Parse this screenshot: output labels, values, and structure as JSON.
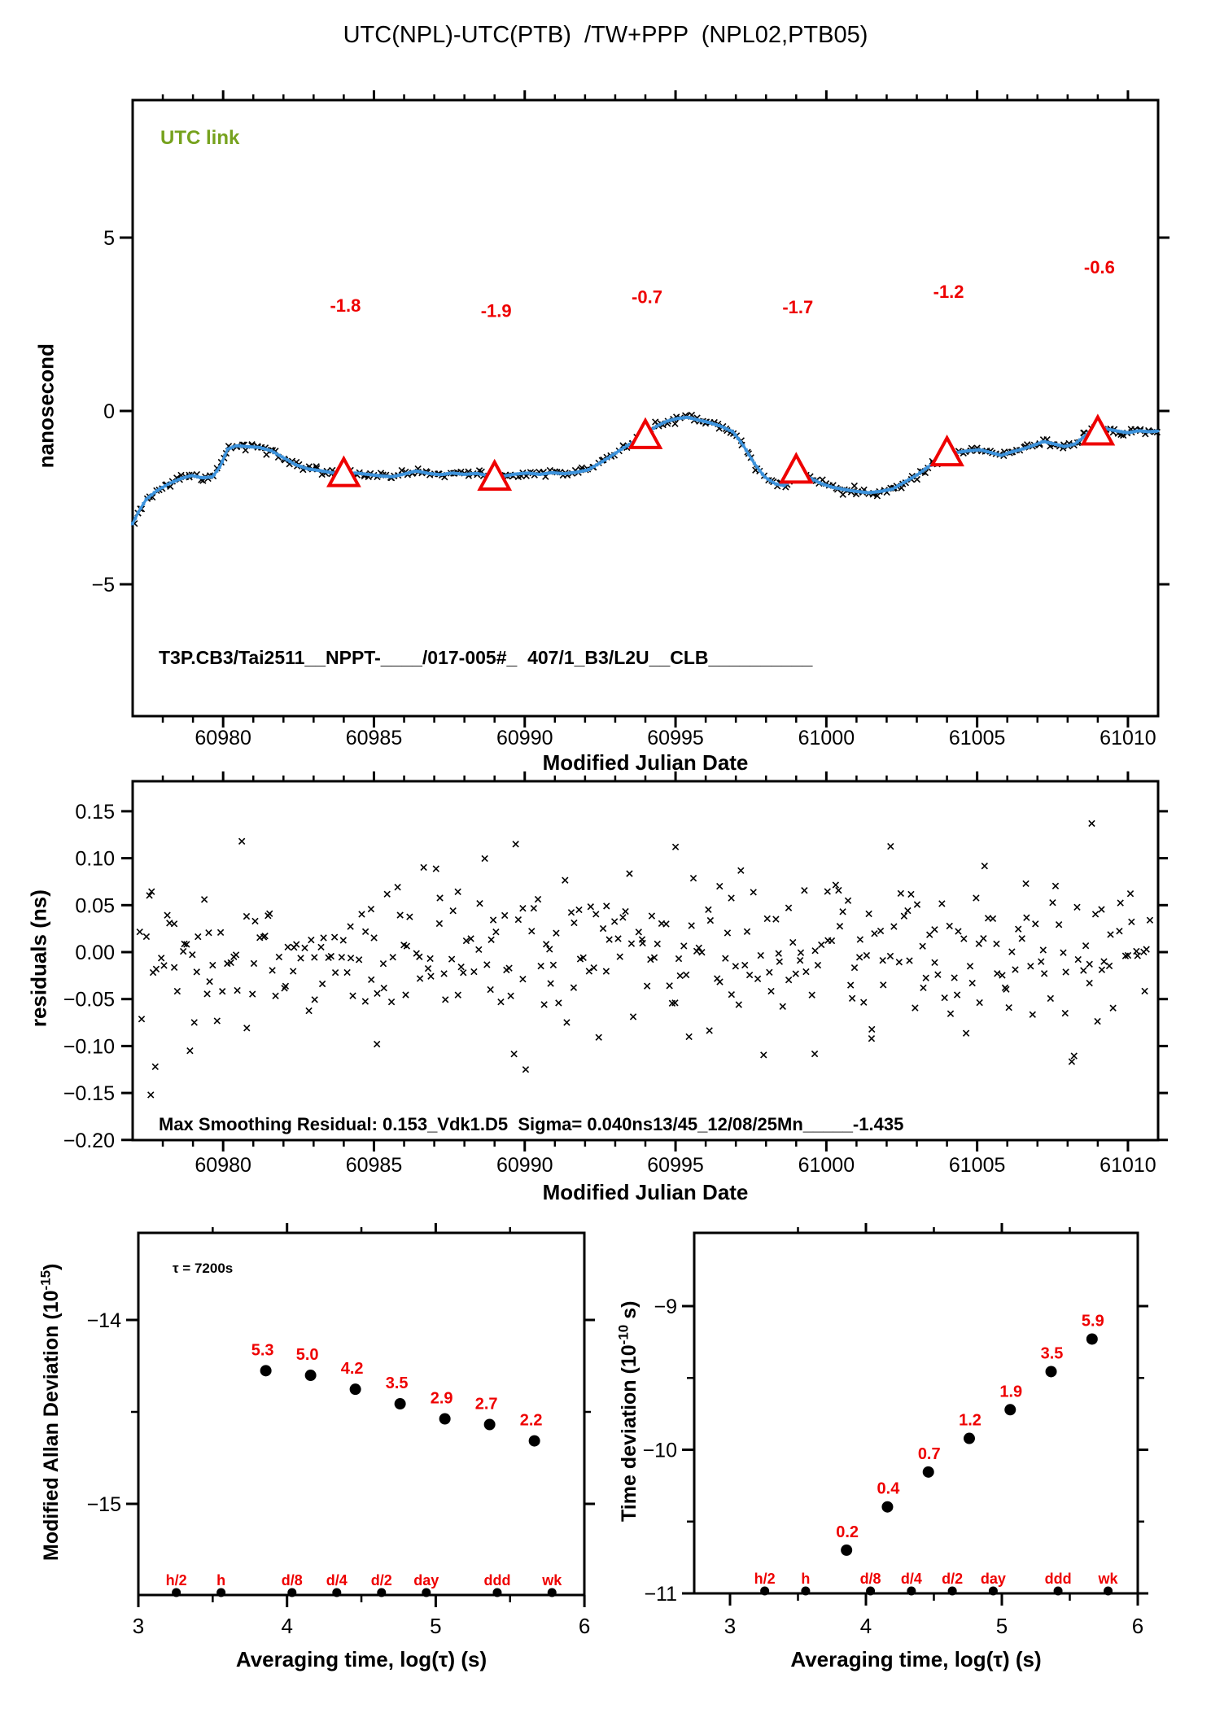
{
  "colors": {
    "red": "#ee0000",
    "blue": "#3d93dc",
    "green": "#76a21e",
    "ink": "#000000",
    "background": "#ffffff"
  },
  "chart_data": [
    {
      "id": "utc-link-time-series",
      "type": "line",
      "title": "UTC(NPL)-UTC(PTB)  /TW+PPP  (NPL02,PTB05)",
      "legend": "UTC link",
      "ylabel": "nanosecond",
      "xlabel": "Modified Julian Date",
      "annotation": "T3P.CB3/Tai2511__NPPT-____/017-005#_  407/1_B3/L2U__CLB__________",
      "xlim": [
        60977,
        61011
      ],
      "ylim": [
        -9,
        9
      ],
      "xticks_major": [
        60980,
        60985,
        60990,
        60995,
        61000,
        61005,
        61010
      ],
      "xtick_minor_step": 1,
      "yticks": [
        {
          "v": 5,
          "label": "5"
        },
        {
          "v": 0,
          "label": "0"
        },
        {
          "v": -5,
          "label": "−5"
        }
      ],
      "calibration_points": [
        {
          "mjd": 60984,
          "ns": -1.8,
          "label": "-1.8",
          "label_ns": 3.05
        },
        {
          "mjd": 60989,
          "ns": -1.9,
          "label": "-1.9",
          "label_ns": 2.9
        },
        {
          "mjd": 60994,
          "ns": -0.7,
          "label": "-0.7",
          "label_ns": 3.3
        },
        {
          "mjd": 60999,
          "ns": -1.7,
          "label": "-1.7",
          "label_ns": 3.0
        },
        {
          "mjd": 61004,
          "ns": -1.2,
          "label": "-1.2",
          "label_ns": 3.45
        },
        {
          "mjd": 61009,
          "ns": -0.6,
          "label": "-0.6",
          "label_ns": 4.15
        }
      ],
      "trace": [
        [
          60977.0,
          -3.25
        ],
        [
          60977.2,
          -2.9
        ],
        [
          60977.45,
          -2.55
        ],
        [
          60977.8,
          -2.3
        ],
        [
          60978.2,
          -2.1
        ],
        [
          60978.6,
          -1.95
        ],
        [
          60978.95,
          -1.86
        ],
        [
          60979.3,
          -1.93
        ],
        [
          60979.65,
          -1.9
        ],
        [
          60979.9,
          -1.6
        ],
        [
          60980.15,
          -1.1
        ],
        [
          60980.45,
          -1.0
        ],
        [
          60980.8,
          -1.03
        ],
        [
          60981.2,
          -1.05
        ],
        [
          60981.6,
          -1.15
        ],
        [
          60982.0,
          -1.35
        ],
        [
          60982.4,
          -1.55
        ],
        [
          60982.8,
          -1.67
        ],
        [
          60983.2,
          -1.72
        ],
        [
          60983.6,
          -1.78
        ],
        [
          60984.0,
          -1.83
        ],
        [
          60984.4,
          -1.79
        ],
        [
          60984.8,
          -1.83
        ],
        [
          60985.2,
          -1.87
        ],
        [
          60985.6,
          -1.9
        ],
        [
          60986.0,
          -1.82
        ],
        [
          60986.4,
          -1.73
        ],
        [
          60986.8,
          -1.8
        ],
        [
          60987.2,
          -1.84
        ],
        [
          60987.6,
          -1.79
        ],
        [
          60988.0,
          -1.83
        ],
        [
          60988.4,
          -1.8
        ],
        [
          60988.7,
          -1.85
        ],
        [
          60989.0,
          -1.92
        ],
        [
          60989.35,
          -1.87
        ],
        [
          60989.7,
          -1.82
        ],
        [
          60990.1,
          -1.79
        ],
        [
          60990.5,
          -1.83
        ],
        [
          60990.9,
          -1.78
        ],
        [
          60991.3,
          -1.81
        ],
        [
          60991.7,
          -1.77
        ],
        [
          60992.1,
          -1.7
        ],
        [
          60992.5,
          -1.5
        ],
        [
          60992.9,
          -1.28
        ],
        [
          60993.3,
          -1.05
        ],
        [
          60993.7,
          -0.85
        ],
        [
          60994.0,
          -0.68
        ],
        [
          60994.35,
          -0.45
        ],
        [
          60994.7,
          -0.3
        ],
        [
          60995.05,
          -0.22
        ],
        [
          60995.4,
          -0.18
        ],
        [
          60995.75,
          -0.26
        ],
        [
          60996.1,
          -0.33
        ],
        [
          60996.5,
          -0.44
        ],
        [
          60996.9,
          -0.6
        ],
        [
          60997.25,
          -1.0
        ],
        [
          60997.6,
          -1.5
        ],
        [
          60997.95,
          -1.9
        ],
        [
          60998.3,
          -2.1
        ],
        [
          60998.6,
          -2.15
        ],
        [
          60998.85,
          -2.0
        ],
        [
          60999.0,
          -1.78
        ],
        [
          60999.2,
          -1.85
        ],
        [
          60999.5,
          -1.95
        ],
        [
          60999.85,
          -2.1
        ],
        [
          61000.2,
          -2.2
        ],
        [
          61000.6,
          -2.27
        ],
        [
          61001.0,
          -2.32
        ],
        [
          61001.4,
          -2.36
        ],
        [
          61001.8,
          -2.32
        ],
        [
          61002.2,
          -2.25
        ],
        [
          61002.6,
          -2.05
        ],
        [
          61003.0,
          -1.85
        ],
        [
          61003.4,
          -1.6
        ],
        [
          61003.75,
          -1.42
        ],
        [
          61004.0,
          -1.3
        ],
        [
          61004.3,
          -1.2
        ],
        [
          61004.7,
          -1.15
        ],
        [
          61005.1,
          -1.12
        ],
        [
          61005.45,
          -1.2
        ],
        [
          61005.8,
          -1.28
        ],
        [
          61006.15,
          -1.18
        ],
        [
          61006.5,
          -1.1
        ],
        [
          61006.85,
          -1.0
        ],
        [
          61007.2,
          -0.88
        ],
        [
          61007.55,
          -0.95
        ],
        [
          61007.9,
          -1.03
        ],
        [
          61008.25,
          -0.95
        ],
        [
          61008.6,
          -0.7
        ],
        [
          61008.95,
          -0.45
        ],
        [
          61009.3,
          -0.52
        ],
        [
          61009.65,
          -0.58
        ],
        [
          61010.0,
          -0.63
        ],
        [
          61010.35,
          -0.57
        ],
        [
          61010.7,
          -0.6
        ],
        [
          61011.0,
          -0.58
        ]
      ],
      "scatter": {
        "n": 345,
        "sigma_ns": 0.055,
        "max_dev_ns": 0.15,
        "seed": 42
      }
    },
    {
      "id": "residuals",
      "type": "scatter",
      "ylabel": "residuals (ns)",
      "xlabel": "Modified Julian Date",
      "annotation": "Max Smoothing Residual: 0.153_Vdk1.D5  Sigma= 0.040ns13/45_12/08/25Mn_____-1.435",
      "max_smoothing_residual_ns": 0.153,
      "sigma_ns": 0.04,
      "xlim": [
        60977,
        61011
      ],
      "ylim": [
        -0.2,
        0.182
      ],
      "xticks_major": [
        60980,
        60985,
        60990,
        60995,
        61000,
        61005,
        61010
      ],
      "xtick_minor_step": 1,
      "yticks": [
        {
          "v": 0.15,
          "label": "0.15"
        },
        {
          "v": 0.1,
          "label": "0.10"
        },
        {
          "v": 0.05,
          "label": "0.05"
        },
        {
          "v": 0.0,
          "label": "0.00"
        },
        {
          "v": -0.05,
          "label": "−0.05"
        },
        {
          "v": -0.1,
          "label": "−0.10"
        },
        {
          "v": -0.15,
          "label": "−0.15"
        },
        {
          "v": -0.2,
          "label": "−0.20"
        }
      ],
      "scatter": {
        "n": 340,
        "sigma": 0.042,
        "seed": 7,
        "outliers": [
          [
            60977.6,
            -0.152
          ],
          [
            60977.75,
            -0.122
          ],
          [
            60978.9,
            -0.105
          ],
          [
            60985.1,
            -0.098
          ],
          [
            60989.7,
            0.115
          ],
          [
            60995.0,
            0.112
          ],
          [
            61001.5,
            -0.092
          ],
          [
            61008.8,
            0.137
          ]
        ]
      }
    },
    {
      "id": "mdev",
      "type": "scatter",
      "ylabel_base": "Modified Allan Deviation (10",
      "ylabel_sup": "-15",
      "ylabel_close": ")",
      "xlabel": "Averaging time, log(τ) (s)",
      "note": "τ = 7200s",
      "unit": "1e-15",
      "xlim": [
        3,
        6
      ],
      "ylim": [
        -15.5,
        -13.53
      ],
      "xticks": [
        {
          "v": 3,
          "label": "3"
        },
        {
          "v": 4,
          "label": "4"
        },
        {
          "v": 5,
          "label": "5"
        },
        {
          "v": 6,
          "label": "6"
        }
      ],
      "xticks_minor": [
        3.5,
        4.5,
        5.5
      ],
      "top_ticks": [
        3.5,
        4,
        4.5,
        5,
        5.5
      ],
      "yticks": [
        {
          "v": -14,
          "label": "−14"
        },
        {
          "v": -15,
          "label": "−15"
        }
      ],
      "yticks_minor": [
        -14.5
      ],
      "points": [
        {
          "log_tau": 3.8573,
          "value": 5.3,
          "label": "5.3"
        },
        {
          "log_tau": 4.1584,
          "value": 5.0,
          "label": "5.0"
        },
        {
          "log_tau": 4.4594,
          "value": 4.2,
          "label": "4.2"
        },
        {
          "log_tau": 4.7604,
          "value": 3.5,
          "label": "3.5"
        },
        {
          "log_tau": 5.0615,
          "value": 2.9,
          "label": "2.9"
        },
        {
          "log_tau": 5.3625,
          "value": 2.7,
          "label": "2.7"
        },
        {
          "log_tau": 5.6636,
          "value": 2.2,
          "label": "2.2"
        }
      ],
      "tau_markers": [
        {
          "label": "h/2",
          "log_tau": 3.2553
        },
        {
          "label": "h",
          "log_tau": 3.5563
        },
        {
          "label": "d/8",
          "log_tau": 4.0334
        },
        {
          "label": "d/4",
          "log_tau": 4.3345
        },
        {
          "label": "d/2",
          "log_tau": 4.6355
        },
        {
          "label": "day",
          "log_tau": 4.9366
        },
        {
          "label": "ddd",
          "log_tau": 5.4137
        },
        {
          "label": "wk",
          "log_tau": 5.7818
        }
      ]
    },
    {
      "id": "tdev",
      "type": "scatter",
      "ylabel_base": "Time deviation (10",
      "ylabel_sup": "-10",
      "ylabel_close": " s)",
      "xlabel": "Averaging time, log(τ) (s)",
      "unit": "1e-10",
      "xlim": [
        2.73,
        6.0
      ],
      "ylim": [
        -11,
        -8.49
      ],
      "xticks": [
        {
          "v": 3,
          "label": "3"
        },
        {
          "v": 4,
          "label": "4"
        },
        {
          "v": 5,
          "label": "5"
        },
        {
          "v": 6,
          "label": "6"
        }
      ],
      "xticks_minor": [
        3.5,
        4.5,
        5.5
      ],
      "top_ticks": [
        3.5,
        4,
        4.5,
        5,
        5.5
      ],
      "yticks": [
        {
          "v": -9,
          "label": "−9"
        },
        {
          "v": -10,
          "label": "−10"
        },
        {
          "v": -11,
          "label": "−11"
        }
      ],
      "yticks_minor": [
        -9.5,
        -10.5
      ],
      "points": [
        {
          "log_tau": 3.8573,
          "value": 0.2,
          "label": "0.2"
        },
        {
          "log_tau": 4.1584,
          "value": 0.4,
          "label": "0.4"
        },
        {
          "log_tau": 4.4594,
          "value": 0.7,
          "label": "0.7"
        },
        {
          "log_tau": 4.7604,
          "value": 1.2,
          "label": "1.2"
        },
        {
          "log_tau": 5.0615,
          "value": 1.9,
          "label": "1.9"
        },
        {
          "log_tau": 5.3625,
          "value": 3.5,
          "label": "3.5"
        },
        {
          "log_tau": 5.6636,
          "value": 5.9,
          "label": "5.9"
        }
      ],
      "tau_markers": [
        {
          "label": "h/2",
          "log_tau": 3.2553
        },
        {
          "label": "h",
          "log_tau": 3.5563
        },
        {
          "label": "d/8",
          "log_tau": 4.0334
        },
        {
          "label": "d/4",
          "log_tau": 4.3345
        },
        {
          "label": "d/2",
          "log_tau": 4.6355
        },
        {
          "label": "day",
          "log_tau": 4.9366
        },
        {
          "label": "ddd",
          "log_tau": 5.4137
        },
        {
          "label": "wk",
          "log_tau": 5.7818
        }
      ]
    }
  ]
}
